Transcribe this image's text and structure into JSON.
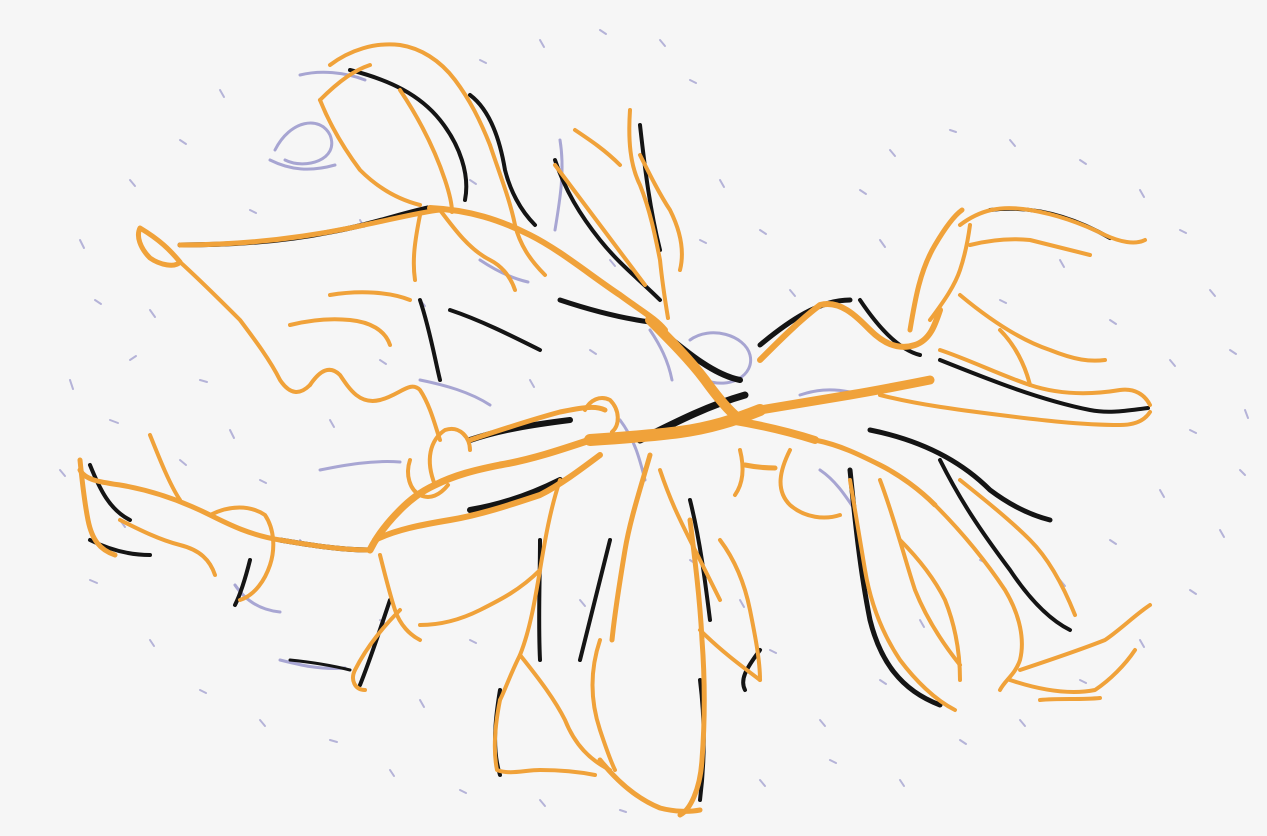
{
  "image": {
    "subject": "vessel-network",
    "background": "#f6f6f6"
  },
  "colors": {
    "background": "#f6f6f6",
    "capillaries": "#9a98cc",
    "vessels_orange": "#f0a23a",
    "vessels_dark": "#141414"
  },
  "layers": [
    {
      "name": "capillary-layer",
      "color": "#9a98cc"
    },
    {
      "name": "dark-vessel-layer",
      "color": "#141414"
    },
    {
      "name": "orange-vessel-layer",
      "color": "#f0a23a"
    }
  ]
}
